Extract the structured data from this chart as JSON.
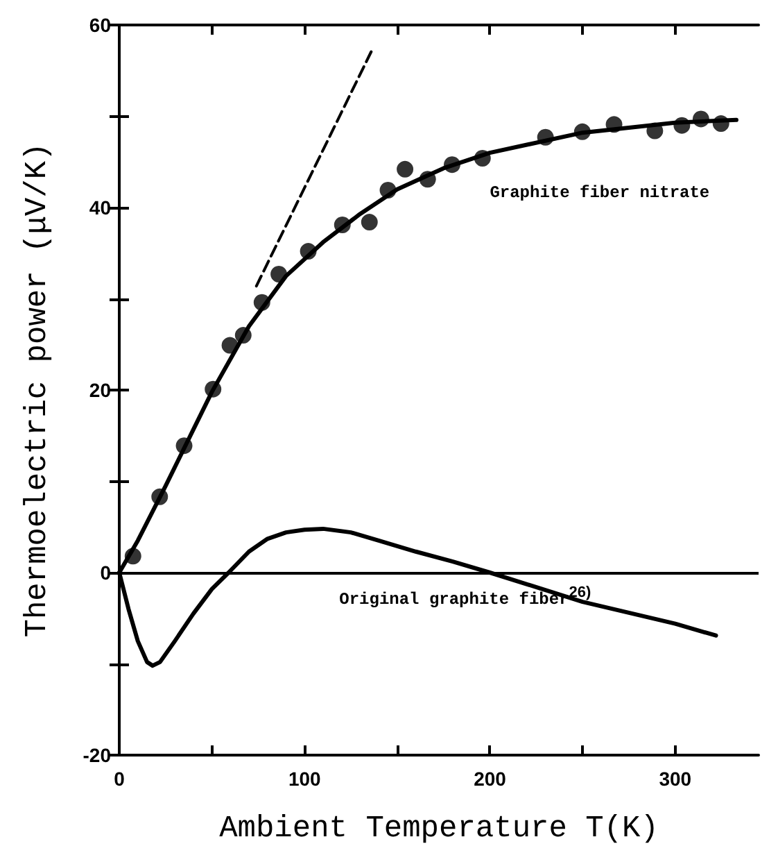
{
  "chart_data": {
    "type": "line",
    "xlabel": "Ambient Temperature T(K)",
    "ylabel": "Thermoelectric power (μV/K)",
    "xlim": [
      0,
      345
    ],
    "xticks": [
      0,
      {
        "value": 50,
        "label": null
      },
      100,
      {
        "value": 150,
        "label": null
      },
      200,
      {
        "value": 250,
        "label": null
      },
      300
    ],
    "ylim": [
      -20,
      60
    ],
    "yticks": [
      -20,
      {
        "value": -10,
        "label": null
      },
      0,
      {
        "value": 10,
        "label": null
      },
      20,
      {
        "value": 30,
        "label": null
      },
      40,
      {
        "value": 50,
        "label": null
      },
      60
    ],
    "grid": false,
    "ref_lines": [
      {
        "axis": "y",
        "value": 0,
        "color": "#000000",
        "line_style": "solid"
      }
    ],
    "annotations": [
      "Graphite fiber nitrate",
      "Original graphite fiber$^{26)}$"
    ],
    "series": [
      {
        "type": "scatter",
        "color": "#000000",
        "marker": "circle",
        "x": [
          7.4,
          21.8,
          35,
          50.6,
          59.7,
          66.9,
          77,
          86.1,
          102,
          120.4,
          135,
          145,
          154.2,
          166.4,
          179.6,
          196,
          230,
          249.9,
          267,
          289,
          303.6,
          313.9,
          324.7
        ],
        "values": [
          1.8,
          8.3,
          13.9,
          20.1,
          24.9,
          26.0,
          29.6,
          32.7,
          35.2,
          38.1,
          38.4,
          41.9,
          44.2,
          43.1,
          44.7,
          45.4,
          47.7,
          48.3,
          49.1,
          48.4,
          49.0,
          49.7,
          49.2
        ]
      },
      {
        "color": "#000000",
        "marker": "none",
        "line_style": "solid",
        "x": [
          0,
          10,
          25,
          50,
          70,
          90,
          110,
          130,
          150,
          175,
          200,
          250,
          300,
          333
        ],
        "values": [
          0,
          3.5,
          9.5,
          19.8,
          27,
          32.5,
          36.2,
          39.3,
          42,
          44.3,
          46,
          48.2,
          49.3,
          49.6
        ]
      },
      {
        "color": "#000000",
        "marker": "none",
        "line_style": "dashed",
        "x": [
          74,
          136.5
        ],
        "values": [
          31.4,
          57.3
        ]
      },
      {
        "color": "#000000",
        "marker": "none",
        "line_style": "solid",
        "x": [
          0,
          5,
          10,
          15,
          18,
          22,
          30,
          40,
          50,
          59,
          70,
          80,
          90,
          100,
          110,
          125,
          140,
          160,
          180,
          200,
          250,
          300,
          322
        ],
        "values": [
          0,
          -4,
          -7.5,
          -9.8,
          -10.2,
          -9.8,
          -7.5,
          -4.5,
          -1.8,
          0,
          2.3,
          3.7,
          4.4,
          4.7,
          4.8,
          4.4,
          3.5,
          2.3,
          1.2,
          0,
          -3.2,
          -5.6,
          -6.9
        ]
      }
    ]
  }
}
